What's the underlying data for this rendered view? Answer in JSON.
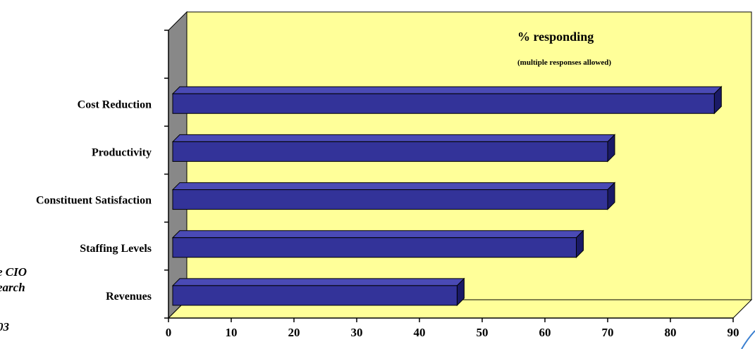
{
  "chart_data": {
    "type": "bar",
    "orientation": "horizontal",
    "categories": [
      "Cost Reduction",
      "Productivity",
      "Constituent Satisfaction",
      "Staffing Levels",
      "Revenues"
    ],
    "series": [
      {
        "values": [
          87,
          70,
          70,
          65,
          46
        ]
      }
    ],
    "xlim": [
      0,
      90
    ],
    "x_ticks": [
      "0",
      "10",
      "20",
      "30",
      "40",
      "50",
      "60",
      "70",
      "80",
      "90"
    ],
    "legend_title": "% responding",
    "legend_subtitle": "(multiple responses allowed)",
    "colors": {
      "bar_front": "#333399",
      "bar_top": "#4a4ab5",
      "bar_side": "#1a1a66",
      "back_wall": "#ffff99",
      "side_wall": "#888888",
      "floor": "#ffff99"
    },
    "grid": false,
    "three_d": true
  },
  "side_text": {
    "line1": "e CIO",
    "line2": "earch",
    "line3": "03"
  }
}
